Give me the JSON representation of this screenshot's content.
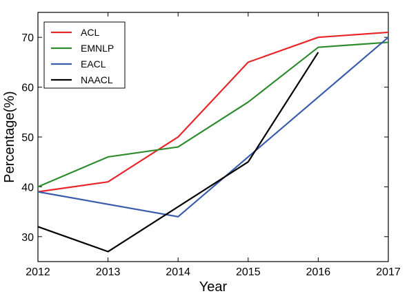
{
  "chart_data": {
    "type": "line",
    "title": "",
    "xlabel": "Year",
    "ylabel": "Percentage(%)",
    "x": [
      2012,
      2013,
      2014,
      2015,
      2016,
      2017
    ],
    "xlim": [
      2012,
      2017
    ],
    "ylim": [
      25,
      75
    ],
    "yticks": [
      30,
      40,
      50,
      60,
      70
    ],
    "grid": false,
    "legend_position": "top-left",
    "series": [
      {
        "name": "ACL",
        "color": "#e8262a",
        "points": [
          [
            2012,
            39
          ],
          [
            2013,
            41
          ],
          [
            2014,
            50
          ],
          [
            2015,
            65
          ],
          [
            2016,
            70
          ],
          [
            2017,
            71
          ]
        ]
      },
      {
        "name": "EMNLP",
        "color": "#2e8b2e",
        "points": [
          [
            2012,
            40
          ],
          [
            2013,
            46
          ],
          [
            2014,
            48
          ],
          [
            2015,
            57
          ],
          [
            2016,
            68
          ],
          [
            2017,
            69
          ]
        ]
      },
      {
        "name": "EACL",
        "color": "#3a5cad",
        "points": [
          [
            2012,
            39
          ],
          [
            2014,
            34
          ],
          [
            2017,
            70
          ]
        ]
      },
      {
        "name": "NAACL",
        "color": "#000000",
        "points": [
          [
            2012,
            32
          ],
          [
            2013,
            27
          ],
          [
            2015,
            45
          ],
          [
            2016,
            67
          ]
        ]
      }
    ]
  }
}
